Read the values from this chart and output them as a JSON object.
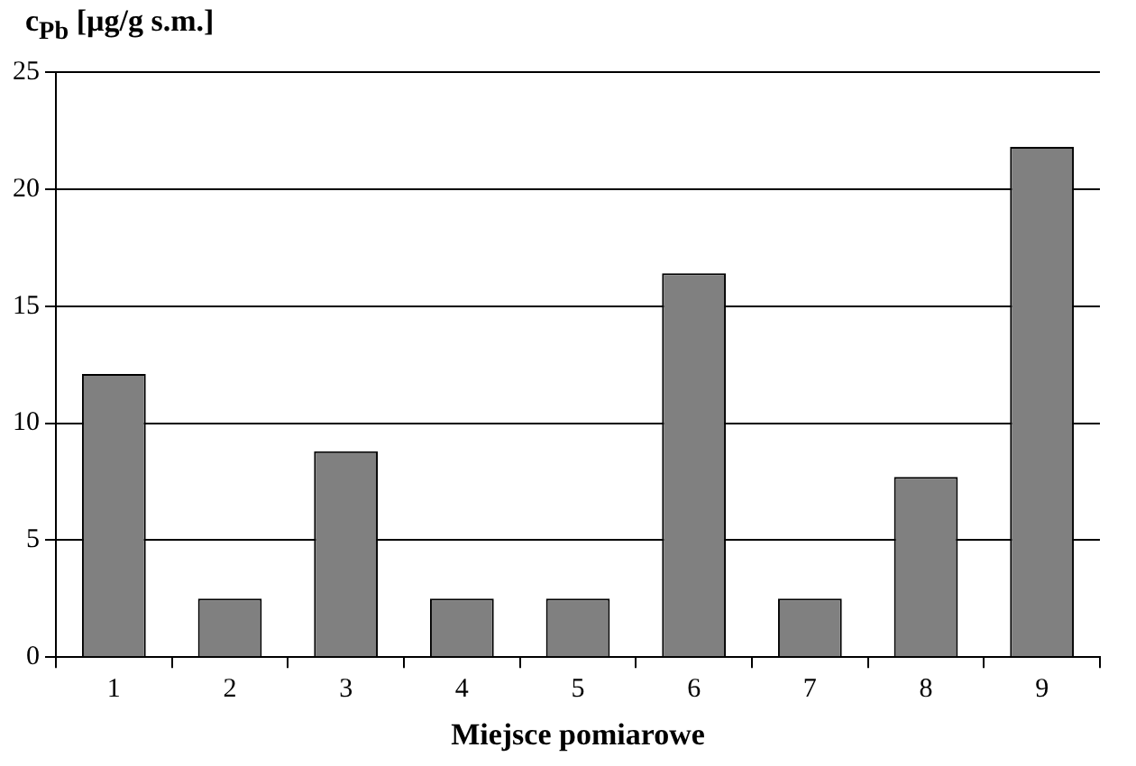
{
  "chart_data": {
    "type": "bar",
    "ylabel": "c$_{Pb}$ [µg/g s.m.]",
    "xlabel": "Miejsce pomiarowe",
    "categories": [
      "1",
      "2",
      "3",
      "4",
      "5",
      "6",
      "7",
      "8",
      "9"
    ],
    "values": [
      12.1,
      2.5,
      8.8,
      2.5,
      2.5,
      16.4,
      2.5,
      7.7,
      21.8
    ],
    "color": "#808080",
    "ylim": [
      0,
      25
    ],
    "yticks": [
      0,
      5,
      10,
      15,
      20,
      25
    ],
    "grid": "y",
    "legend": false
  }
}
